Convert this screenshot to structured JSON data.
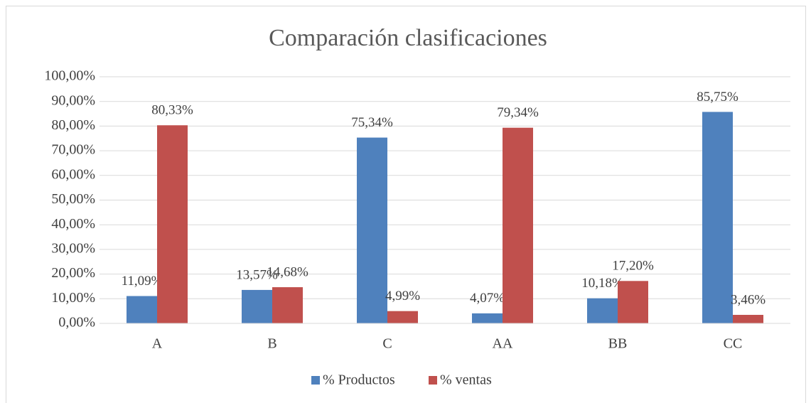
{
  "chart_data": {
    "type": "bar",
    "title": "Comparación clasificaciones",
    "categories": [
      "A",
      "B",
      "C",
      "AA",
      "BB",
      "CC"
    ],
    "series": [
      {
        "name": "% Productos",
        "color": "#4f81bd",
        "values": [
          11.09,
          13.57,
          75.34,
          4.07,
          10.18,
          85.75
        ],
        "value_labels": [
          "11,09%",
          "13,57%",
          "75,34%",
          "4,07%",
          "10,18%",
          "85,75%"
        ]
      },
      {
        "name": "% ventas",
        "color": "#c0504d",
        "values": [
          80.33,
          14.68,
          4.99,
          79.34,
          17.2,
          3.46
        ],
        "value_labels": [
          "80,33%",
          "14,68%",
          "4,99%",
          "79,34%",
          "17,20%",
          "3,46%"
        ]
      }
    ],
    "ylim": [
      0,
      100
    ],
    "yticks": [
      {
        "value": 0,
        "label": "0,00%"
      },
      {
        "value": 10,
        "label": "10,00%"
      },
      {
        "value": 20,
        "label": "20,00%"
      },
      {
        "value": 30,
        "label": "30,00%"
      },
      {
        "value": 40,
        "label": "40,00%"
      },
      {
        "value": 50,
        "label": "50,00%"
      },
      {
        "value": 60,
        "label": "60,00%"
      },
      {
        "value": 70,
        "label": "70,00%"
      },
      {
        "value": 80,
        "label": "80,00%"
      },
      {
        "value": 90,
        "label": "90,00%"
      },
      {
        "value": 100,
        "label": "100,00%"
      }
    ],
    "grid": true,
    "legend": "bottom"
  }
}
